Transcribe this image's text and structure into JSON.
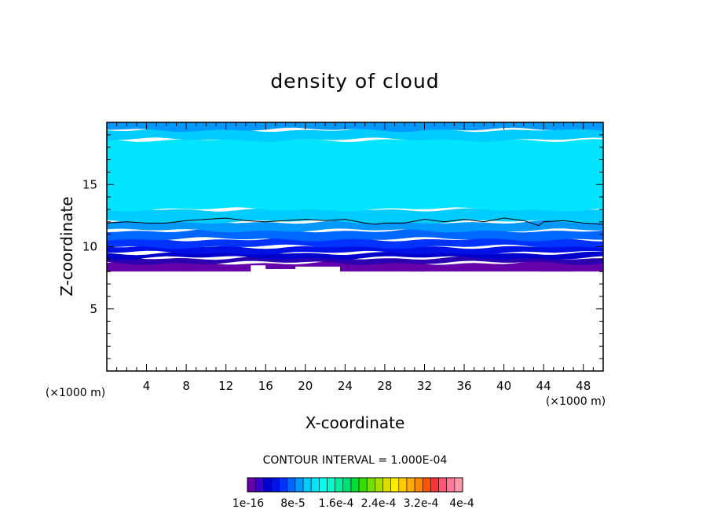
{
  "chart_data": {
    "type": "heatmap",
    "title": "density of cloud",
    "xlabel": "X-coordinate",
    "ylabel": "Z-coordinate",
    "x_unit": "(×1000 m)",
    "z_unit": "(×1000 m)",
    "xlim": [
      0,
      50
    ],
    "ylim": [
      0,
      20
    ],
    "x_ticks": [
      4,
      8,
      12,
      16,
      20,
      24,
      28,
      32,
      36,
      40,
      44,
      48
    ],
    "y_ticks": [
      5,
      10,
      15
    ],
    "contour_interval_label": "CONTOUR INTERVAL = 1.000E-04",
    "colorbar_labels": [
      "1e-16",
      "8e-5",
      "1.6e-4",
      "2.4e-4",
      "3.2e-4",
      "4e-4"
    ],
    "colorbar_colors": [
      "#6600aa",
      "#3a00c8",
      "#0000cc",
      "#0011e6",
      "#0033ff",
      "#0066ff",
      "#0099ff",
      "#00ccff",
      "#00e5ff",
      "#00ffee",
      "#00ffcc",
      "#00f0a0",
      "#00e070",
      "#00dd33",
      "#33dd00",
      "#77dd00",
      "#aadd00",
      "#dddd00",
      "#ffee00",
      "#ffcc00",
      "#ffaa00",
      "#ff8800",
      "#ff5500",
      "#ff3333",
      "#ff5577",
      "#ff7799",
      "#ff99aa"
    ],
    "layers": [
      {
        "level": "1e-16",
        "z_bottom": 8.0,
        "z_top": 8.7,
        "color": "#6600aa"
      },
      {
        "level": "2e-5",
        "z_bottom": 8.7,
        "z_top": 9.1,
        "color": "#2a00b0"
      },
      {
        "level": "4e-5",
        "z_bottom": 9.1,
        "z_top": 9.5,
        "color": "#0000cc"
      },
      {
        "level": "6e-5",
        "z_bottom": 9.5,
        "z_top": 10.0,
        "color": "#0011e6"
      },
      {
        "level": "8e-5",
        "z_bottom": 10.0,
        "z_top": 10.6,
        "color": "#0033ff"
      },
      {
        "level": "1e-4",
        "z_bottom": 10.6,
        "z_top": 11.3,
        "color": "#0066ff"
      },
      {
        "level": "1.2e-4",
        "z_bottom": 11.3,
        "z_top": 12.0,
        "color": "#0099ff"
      },
      {
        "level": "1.4e-4",
        "z_bottom": 12.0,
        "z_top": 13.0,
        "color": "#00ccff"
      },
      {
        "level": "1.6e-4",
        "z_bottom": 13.0,
        "z_top": 18.6,
        "color": "#00e5ff"
      },
      {
        "level": "1.4e-4",
        "z_bottom": 18.6,
        "z_top": 19.4,
        "color": "#00ccff"
      },
      {
        "level": "1.2e-4",
        "z_bottom": 19.4,
        "z_top": 20.0,
        "color": "#0099ff"
      }
    ],
    "cloud_base_profile": {
      "x": [
        0,
        14.5,
        14.5,
        16,
        16,
        19,
        19,
        23.5,
        23.5,
        30.5,
        30.5,
        32,
        32,
        43.5,
        43.5,
        47,
        47,
        50
      ],
      "z": [
        8.0,
        8.0,
        8.5,
        8.5,
        8.2,
        8.2,
        8.4,
        8.4,
        8.0,
        8.0,
        7.8,
        7.8,
        8.0,
        8.0,
        7.8,
        7.8,
        8.0,
        8.0
      ]
    },
    "contour_line": {
      "x": [
        0,
        2,
        4,
        6,
        8,
        10,
        12,
        14,
        16,
        18,
        20,
        22,
        24,
        26,
        27,
        28,
        30,
        32,
        34,
        36,
        38,
        40,
        42,
        43.5,
        44,
        46,
        48,
        50
      ],
      "z": [
        11.9,
        12.0,
        11.9,
        11.9,
        12.1,
        12.2,
        12.3,
        12.1,
        12.0,
        12.1,
        12.2,
        12.1,
        12.2,
        11.9,
        11.8,
        11.9,
        11.9,
        12.2,
        12.0,
        12.2,
        12.0,
        12.3,
        12.1,
        11.7,
        12.0,
        12.1,
        11.9,
        11.8
      ]
    }
  }
}
